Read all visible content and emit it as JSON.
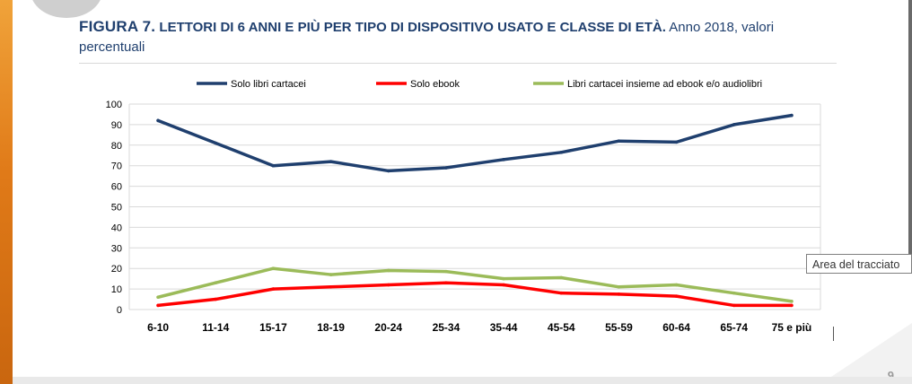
{
  "slide": {
    "title_fig": "FIGURA 7.",
    "title_main": "LETTORI DI 6 ANNI E PIÙ PER TIPO DI DISPOSITIVO USATO E CLASSE DI ETÀ.",
    "title_rest": "Anno 2018, valori percentuali",
    "page_number": "9",
    "tooltip": "Area del tracciato"
  },
  "chart_data": {
    "type": "line",
    "categories": [
      "6-10",
      "11-14",
      "15-17",
      "18-19",
      "20-24",
      "25-34",
      "35-44",
      "45-54",
      "55-59",
      "60-64",
      "65-74",
      "75 e più"
    ],
    "ylim": [
      0,
      100
    ],
    "yticks": [
      0,
      10,
      20,
      30,
      40,
      50,
      60,
      70,
      80,
      90,
      100
    ],
    "grid": true,
    "legend_position": "top",
    "series": [
      {
        "name": "Solo libri cartacei",
        "color": "#1f3f6e",
        "values": [
          92,
          81,
          70,
          72,
          67.5,
          69,
          73,
          76.5,
          82,
          81.5,
          90,
          94.5
        ]
      },
      {
        "name": "Solo ebook",
        "color": "#ff0000",
        "values": [
          2,
          5,
          10,
          11,
          12,
          13,
          12,
          8,
          7.5,
          6.5,
          2,
          2
        ]
      },
      {
        "name": "Libri cartacei insieme ad ebook e/o audiolibri",
        "color": "#9bbb59",
        "values": [
          6,
          13,
          20,
          17,
          19,
          18.5,
          15,
          15.5,
          11,
          12,
          8,
          4
        ]
      }
    ]
  }
}
